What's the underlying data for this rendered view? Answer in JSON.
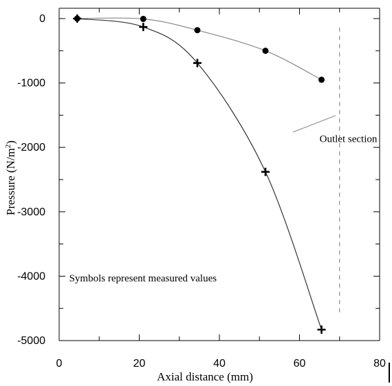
{
  "chart_data": {
    "type": "scatter",
    "xlabel": "Axial distance (mm)",
    "ylabel_main": "Pressure (N/m",
    "ylabel_sup": "2",
    "ylabel_close": ")",
    "xlim": [
      0,
      80
    ],
    "ylim": [
      -5000,
      0
    ],
    "x_ticks": [
      0,
      20,
      40,
      60,
      80
    ],
    "y_ticks": [
      0,
      -1000,
      -2000,
      -3000,
      -4000,
      -5000
    ],
    "grid": false,
    "outlet_x": 70,
    "series": [
      {
        "marker": "circle",
        "color": "#000000",
        "line_color": "#888888",
        "points": [
          {
            "x": 4.5,
            "y": 0
          },
          {
            "x": 21,
            "y": -5
          },
          {
            "x": 34.5,
            "y": -180
          },
          {
            "x": 51.5,
            "y": -500
          },
          {
            "x": 65.5,
            "y": -950
          }
        ]
      },
      {
        "marker": "plus",
        "color": "#000000",
        "line_color": "#333333",
        "points": [
          {
            "x": 4.5,
            "y": 0
          },
          {
            "x": 21,
            "y": -130
          },
          {
            "x": 34.5,
            "y": -690
          },
          {
            "x": 51.5,
            "y": -2380
          },
          {
            "x": 65.5,
            "y": -4830
          }
        ]
      }
    ],
    "annotations": [
      {
        "text": "Outlet section",
        "x": 65,
        "y": -1920
      },
      {
        "text": "Symbols represent measured values",
        "x": 2.5,
        "y": -4080
      }
    ]
  }
}
